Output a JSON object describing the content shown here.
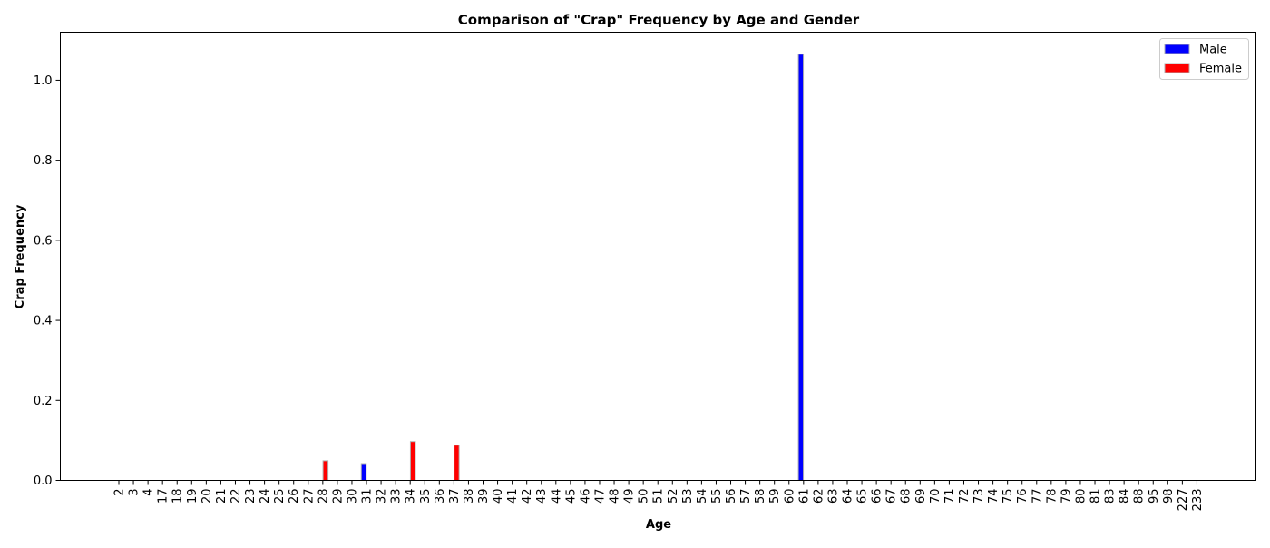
{
  "chart_data": {
    "type": "bar",
    "title": "Comparison of \"Crap\" Frequency by Age and Gender",
    "xlabel": "Age",
    "ylabel": "Crap Frequency",
    "ylim": [
      0,
      1.12
    ],
    "yticks": [
      "0.0",
      "0.2",
      "0.4",
      "0.6",
      "0.8",
      "1.0"
    ],
    "ytick_values": [
      0,
      0.2,
      0.4,
      0.6,
      0.8,
      1.0
    ],
    "grid": false,
    "legend_position": "top-right",
    "categories": [
      "2",
      "3",
      "4",
      "17",
      "18",
      "19",
      "20",
      "21",
      "22",
      "23",
      "24",
      "25",
      "26",
      "27",
      "28",
      "29",
      "30",
      "31",
      "32",
      "33",
      "34",
      "35",
      "36",
      "37",
      "38",
      "39",
      "40",
      "41",
      "42",
      "43",
      "44",
      "45",
      "46",
      "47",
      "48",
      "49",
      "50",
      "51",
      "52",
      "53",
      "54",
      "55",
      "56",
      "57",
      "58",
      "59",
      "60",
      "61",
      "62",
      "63",
      "64",
      "65",
      "66",
      "67",
      "68",
      "69",
      "70",
      "71",
      "72",
      "73",
      "74",
      "75",
      "76",
      "77",
      "78",
      "79",
      "80",
      "81",
      "83",
      "84",
      "88",
      "95",
      "98",
      "227",
      "233"
    ],
    "series": [
      {
        "name": "Male",
        "color": "#0000ff",
        "values": [
          0,
          0,
          0,
          0,
          0,
          0,
          0,
          0,
          0,
          0,
          0,
          0,
          0,
          0,
          0,
          0,
          0,
          0.042,
          0,
          0,
          0,
          0,
          0,
          0,
          0,
          0,
          0,
          0,
          0,
          0,
          0,
          0,
          0,
          0,
          0,
          0,
          0,
          0,
          0,
          0,
          0,
          0,
          0,
          0,
          0,
          0,
          0,
          1.065,
          0,
          0,
          0,
          0,
          0,
          0,
          0,
          0,
          0,
          0,
          0,
          0,
          0,
          0,
          0,
          0,
          0,
          0,
          0,
          0,
          0,
          0,
          0,
          0,
          0,
          0,
          0
        ]
      },
      {
        "name": "Female",
        "color": "#ff0000",
        "values": [
          0,
          0,
          0,
          0,
          0,
          0,
          0,
          0,
          0,
          0,
          0,
          0,
          0,
          0,
          0.049,
          0,
          0,
          0,
          0,
          0,
          0.097,
          0,
          0,
          0.088,
          0,
          0,
          0,
          0,
          0,
          0,
          0,
          0,
          0,
          0,
          0,
          0,
          0,
          0,
          0,
          0,
          0,
          0,
          0,
          0,
          0,
          0,
          0,
          0,
          0,
          0,
          0,
          0,
          0,
          0,
          0,
          0,
          0,
          0,
          0,
          0,
          0,
          0,
          0,
          0,
          0,
          0,
          0,
          0,
          0,
          0,
          0,
          0,
          0,
          0,
          0
        ]
      }
    ]
  }
}
